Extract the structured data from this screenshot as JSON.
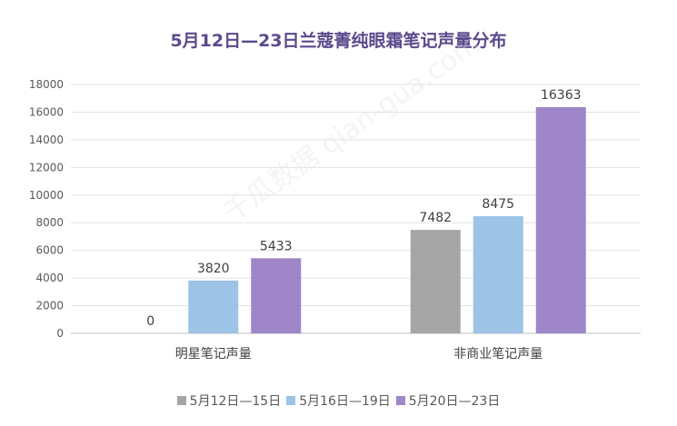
{
  "chart_data": {
    "type": "bar",
    "title": "5月12日—23日兰蔻菁纯眼霜笔记声量分布",
    "categories": [
      "明星笔记声量",
      "非商业笔记声量"
    ],
    "series": [
      {
        "name": "5月12日—15日",
        "color": "#a5a5a5",
        "values": [
          0,
          7482
        ]
      },
      {
        "name": "5月16日—19日",
        "color": "#9dc3e6",
        "values": [
          3820,
          8475
        ]
      },
      {
        "name": "5月20日—23日",
        "color": "#9e86c8",
        "values": [
          5433,
          16363
        ]
      }
    ],
    "ylim": [
      0,
      18000
    ],
    "yticks": [
      0,
      2000,
      4000,
      6000,
      8000,
      10000,
      12000,
      14000,
      16000,
      18000
    ],
    "grid": true,
    "legend": "bottom",
    "watermark": "千瓜数据 qian-gua.com"
  }
}
